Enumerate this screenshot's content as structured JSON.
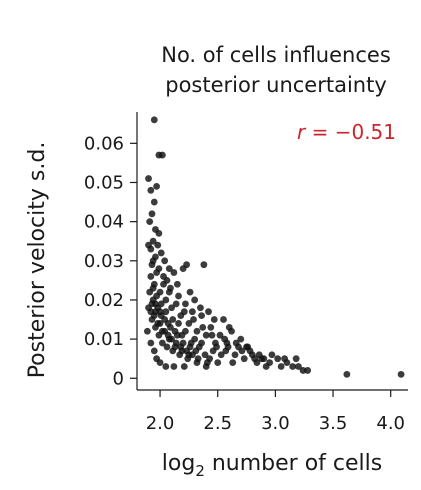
{
  "chart_data": {
    "type": "scatter",
    "title_lines": [
      "No. of cells influences",
      "posterior uncertainty"
    ],
    "xlabel": {
      "base": "log",
      "sub": "2",
      "rest": " number of cells"
    },
    "ylabel": "Posterior velocity s.d.",
    "annotation": {
      "italic": "r",
      "rest": " = −0.51",
      "color": "#c8282d"
    },
    "xlim": [
      1.8,
      4.15
    ],
    "ylim": [
      -0.003,
      0.068
    ],
    "xticks": [
      2.0,
      2.5,
      3.0,
      3.5,
      4.0
    ],
    "xtick_labels": [
      "2.0",
      "2.5",
      "3.0",
      "3.5",
      "4.0"
    ],
    "yticks": [
      0,
      0.01,
      0.02,
      0.03,
      0.04,
      0.05,
      0.06
    ],
    "ytick_labels": [
      "0",
      "0.01",
      "0.02",
      "0.03",
      "0.04",
      "0.05",
      "0.06"
    ],
    "grid": false,
    "point_color": "#111111",
    "points": [
      [
        1.95,
        0.066
      ],
      [
        1.99,
        0.057
      ],
      [
        2.02,
        0.057
      ],
      [
        1.9,
        0.051
      ],
      [
        1.92,
        0.048
      ],
      [
        1.97,
        0.049
      ],
      [
        1.95,
        0.045
      ],
      [
        1.93,
        0.042
      ],
      [
        1.96,
        0.038
      ],
      [
        1.91,
        0.04
      ],
      [
        1.99,
        0.037
      ],
      [
        1.94,
        0.035
      ],
      [
        1.98,
        0.034
      ],
      [
        1.92,
        0.033
      ],
      [
        2.01,
        0.032
      ],
      [
        2.04,
        0.03
      ],
      [
        1.96,
        0.031
      ],
      [
        2.08,
        0.028
      ],
      [
        2.12,
        0.027
      ],
      [
        2.2,
        0.028
      ],
      [
        2.23,
        0.029
      ],
      [
        2.38,
        0.029
      ],
      [
        2.06,
        0.025
      ],
      [
        2.15,
        0.024
      ],
      [
        2.26,
        0.022
      ],
      [
        2.3,
        0.02
      ],
      [
        2.35,
        0.018
      ],
      [
        2.42,
        0.017
      ],
      [
        2.47,
        0.015
      ],
      [
        2.55,
        0.015
      ],
      [
        2.6,
        0.013
      ],
      [
        2.62,
        0.012
      ],
      [
        2.7,
        0.01
      ],
      [
        2.75,
        0.008
      ],
      [
        2.8,
        0.006
      ],
      [
        2.86,
        0.006
      ],
      [
        2.9,
        0.005
      ],
      [
        2.95,
        0.004
      ],
      [
        3.02,
        0.005
      ],
      [
        3.05,
        0.003
      ],
      [
        3.1,
        0.004
      ],
      [
        3.18,
        0.005
      ],
      [
        3.2,
        0.003
      ],
      [
        3.24,
        0.002
      ],
      [
        3.28,
        0.002
      ],
      [
        3.62,
        0.001
      ],
      [
        4.09,
        0.001
      ],
      [
        1.92,
        0.026
      ],
      [
        1.95,
        0.024
      ],
      [
        2.0,
        0.022
      ],
      [
        2.05,
        0.02
      ],
      [
        2.1,
        0.018
      ],
      [
        2.18,
        0.016
      ],
      [
        2.25,
        0.014
      ],
      [
        2.32,
        0.012
      ],
      [
        2.4,
        0.011
      ],
      [
        2.48,
        0.009
      ],
      [
        2.57,
        0.007
      ],
      [
        2.65,
        0.006
      ],
      [
        2.73,
        0.005
      ],
      [
        1.93,
        0.029
      ],
      [
        1.97,
        0.027
      ],
      [
        2.03,
        0.026
      ],
      [
        2.09,
        0.023
      ],
      [
        2.16,
        0.021
      ],
      [
        2.22,
        0.019
      ],
      [
        2.28,
        0.017
      ],
      [
        2.36,
        0.016
      ],
      [
        2.44,
        0.013
      ],
      [
        2.52,
        0.011
      ],
      [
        2.58,
        0.009
      ],
      [
        2.68,
        0.008
      ],
      [
        2.78,
        0.007
      ],
      [
        2.84,
        0.004
      ],
      [
        2.92,
        0.003
      ],
      [
        1.9,
        0.018
      ],
      [
        1.93,
        0.015
      ],
      [
        1.96,
        0.013
      ],
      [
        1.99,
        0.011
      ],
      [
        2.02,
        0.009
      ],
      [
        2.06,
        0.008
      ],
      [
        2.11,
        0.007
      ],
      [
        2.17,
        0.006
      ],
      [
        2.24,
        0.005
      ],
      [
        2.33,
        0.005
      ],
      [
        2.41,
        0.004
      ],
      [
        2.5,
        0.004
      ],
      [
        1.91,
        0.022
      ],
      [
        1.94,
        0.02
      ],
      [
        1.98,
        0.018
      ],
      [
        2.01,
        0.016
      ],
      [
        2.07,
        0.014
      ],
      [
        2.13,
        0.012
      ],
      [
        2.19,
        0.011
      ],
      [
        2.27,
        0.009
      ],
      [
        2.34,
        0.008
      ],
      [
        2.46,
        0.007
      ],
      [
        2.53,
        0.006
      ],
      [
        2.63,
        0.004
      ],
      [
        1.89,
        0.012
      ],
      [
        1.92,
        0.009
      ],
      [
        1.95,
        0.007
      ],
      [
        1.97,
        0.005
      ],
      [
        2.0,
        0.004
      ],
      [
        2.05,
        0.003
      ],
      [
        2.12,
        0.003
      ],
      [
        2.21,
        0.003
      ],
      [
        1.9,
        0.034
      ],
      [
        1.94,
        0.03
      ],
      [
        1.99,
        0.028
      ],
      [
        2.03,
        0.024
      ],
      [
        2.08,
        0.022
      ],
      [
        2.14,
        0.019
      ],
      [
        2.21,
        0.017
      ],
      [
        2.29,
        0.015
      ],
      [
        2.37,
        0.013
      ],
      [
        2.45,
        0.011
      ],
      [
        2.56,
        0.01
      ],
      [
        2.66,
        0.009
      ],
      [
        2.76,
        0.008
      ],
      [
        1.96,
        0.019
      ],
      [
        2.0,
        0.017
      ],
      [
        2.04,
        0.015
      ],
      [
        2.09,
        0.013
      ],
      [
        2.15,
        0.011
      ],
      [
        2.2,
        0.009
      ],
      [
        2.26,
        0.008
      ],
      [
        2.31,
        0.007
      ],
      [
        2.39,
        0.006
      ],
      [
        2.43,
        0.005
      ],
      [
        1.92,
        0.017
      ],
      [
        1.95,
        0.016
      ],
      [
        1.98,
        0.014
      ],
      [
        2.02,
        0.012
      ],
      [
        2.07,
        0.011
      ],
      [
        2.1,
        0.01
      ],
      [
        2.14,
        0.009
      ],
      [
        2.18,
        0.008
      ],
      [
        2.23,
        0.007
      ],
      [
        2.28,
        0.006
      ],
      [
        1.94,
        0.023
      ],
      [
        1.97,
        0.021
      ],
      [
        2.01,
        0.019
      ],
      [
        2.05,
        0.017
      ],
      [
        2.11,
        0.015
      ],
      [
        2.16,
        0.014
      ],
      [
        2.22,
        0.012
      ],
      [
        2.3,
        0.01
      ],
      [
        2.36,
        0.009
      ],
      [
        2.49,
        0.008
      ],
      [
        2.59,
        0.008
      ],
      [
        2.71,
        0.007
      ],
      [
        2.82,
        0.005
      ],
      [
        2.88,
        0.005
      ],
      [
        2.97,
        0.006
      ],
      [
        3.08,
        0.005
      ],
      [
        3.15,
        0.003
      ],
      [
        1.93,
        0.019
      ],
      [
        1.96,
        0.017
      ],
      [
        2.0,
        0.014
      ],
      [
        2.04,
        0.012
      ],
      [
        2.08,
        0.01
      ],
      [
        2.13,
        0.008
      ],
      [
        2.19,
        0.007
      ],
      [
        2.25,
        0.006
      ],
      [
        2.32,
        0.004
      ],
      [
        2.4,
        0.003
      ]
    ]
  }
}
